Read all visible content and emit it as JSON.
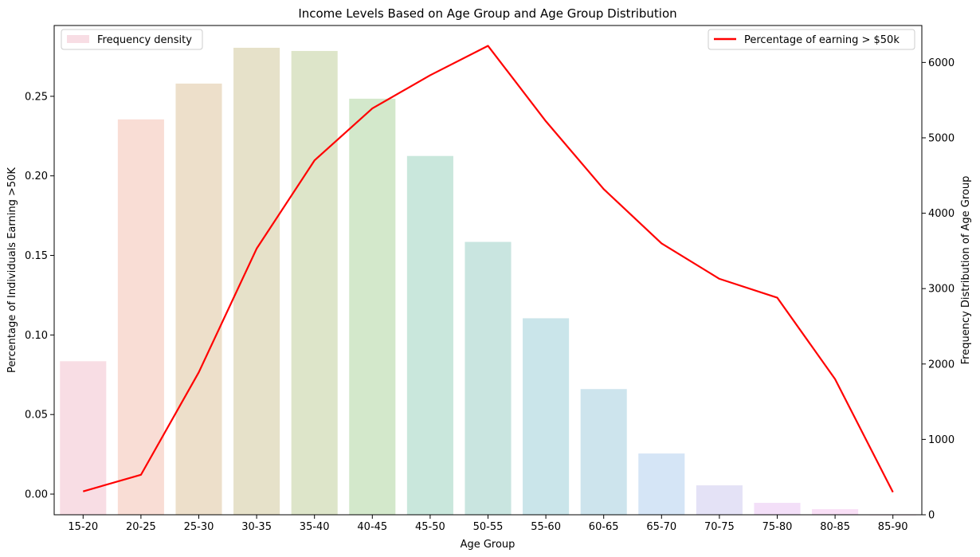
{
  "chart_data": {
    "type": "bar",
    "title": "Income Levels Based on Age Group and Age Group Distribution",
    "xlabel": "Age Group",
    "ylabel_left": "Percentage of Individuals Earning >50K",
    "ylabel_right": "Frequency Distribution of Age Group",
    "categories": [
      "15-20",
      "20-25",
      "25-30",
      "30-35",
      "35-40",
      "40-45",
      "45-50",
      "50-55",
      "55-60",
      "60-65",
      "65-70",
      "70-75",
      "75-80",
      "80-85",
      "85-90"
    ],
    "ylim_left": [
      -0.013,
      0.2945
    ],
    "ylim_right": [
      0,
      6490
    ],
    "yticks_left": [
      "0.00",
      "0.05",
      "0.10",
      "0.15",
      "0.20",
      "0.25"
    ],
    "yticks_left_values": [
      0,
      0.05,
      0.1,
      0.15,
      0.2,
      0.25
    ],
    "yticks_right": [
      "0",
      "1000",
      "2000",
      "3000",
      "4000",
      "5000",
      "6000"
    ],
    "yticks_right_values": [
      0,
      1000,
      2000,
      3000,
      4000,
      5000,
      6000
    ],
    "series": [
      {
        "name": "Frequency density",
        "type": "bar",
        "axis": "left",
        "values": [
          0.0835,
          0.2355,
          0.258,
          0.2805,
          0.2785,
          0.2485,
          0.2125,
          0.1585,
          0.1105,
          0.066,
          0.0255,
          0.0055,
          -0.0055,
          -0.0095,
          -0.013
        ],
        "colors": [
          "#f8dde4",
          "#f9ddd5",
          "#eddfca",
          "#e6e1c9",
          "#dde5c9",
          "#d3e8cb",
          "#c9e7dc",
          "#c9e5e0",
          "#cae5ea",
          "#cde4ed",
          "#d5e5f6",
          "#e4e2f6",
          "#f3dff8",
          "#f9dff6",
          "#f9dff0"
        ]
      },
      {
        "name": "Percentage of earning > $50k",
        "type": "line",
        "axis": "right",
        "color": "#ff0000",
        "values": [
          310,
          530,
          1890,
          3530,
          4700,
          5390,
          5830,
          6220,
          5220,
          4320,
          3600,
          3130,
          2880,
          1800,
          300
        ]
      }
    ],
    "legend_left": {
      "label": "Frequency density",
      "swatch": "#f8dde4",
      "position": "top-left"
    },
    "legend_right": {
      "label": "Percentage of earning > $50k",
      "swatch": "#ff0000",
      "position": "top-right"
    }
  }
}
